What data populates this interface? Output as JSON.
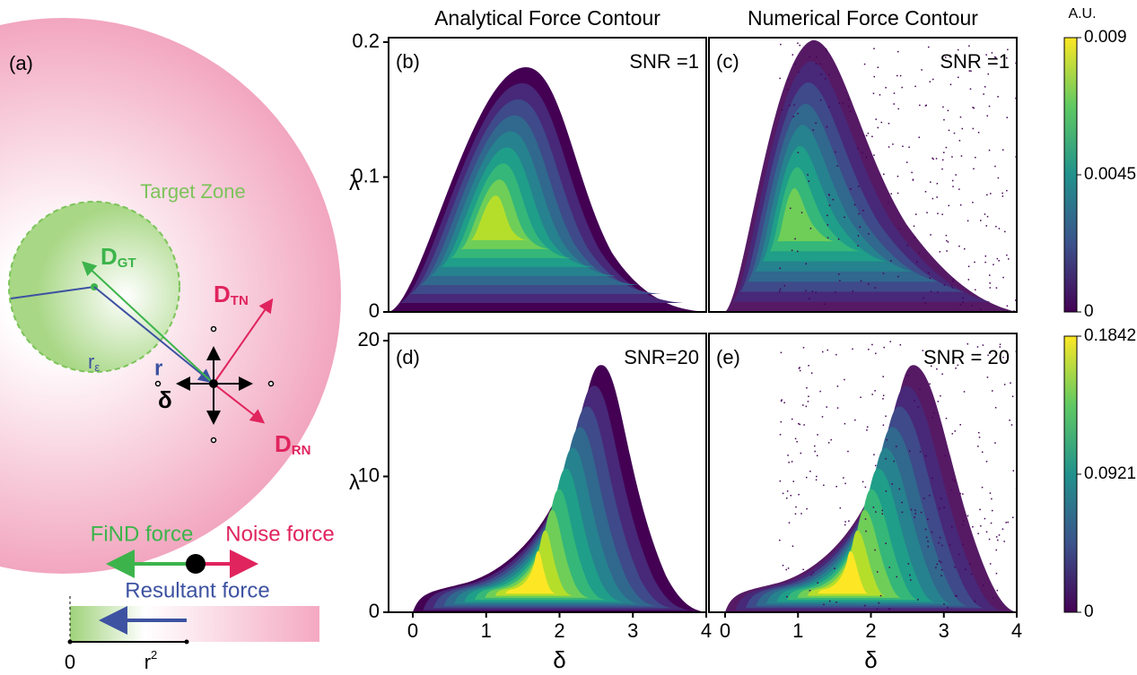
{
  "figure_label": "(a)",
  "diagram": {
    "target_zone": "Target Zone",
    "d_gt": {
      "main": "D",
      "sub": "GT"
    },
    "d_tn": {
      "main": "D",
      "sub": "TN"
    },
    "d_rn": {
      "main": "D",
      "sub": "RN"
    },
    "r_eps": {
      "main": "r",
      "sub": "ε"
    },
    "r": "r",
    "delta": "δ",
    "find_force": "FiND force",
    "noise_force": "Noise force",
    "resultant_force": "Resultant force",
    "axis_zero": "0",
    "axis_r2": {
      "main": "r",
      "sup": "2"
    }
  },
  "chart_data": [
    {
      "type": "contour",
      "panel_label": "(b)",
      "title": "Analytical Force Contour",
      "annotation": "SNR =1",
      "ylabel": "λ",
      "ylim": [
        0,
        0.2
      ],
      "yticks": [
        0,
        0.1,
        0.2
      ],
      "xlim": [
        0,
        4
      ]
    },
    {
      "type": "contour",
      "panel_label": "(c)",
      "title": "Numerical Force Contour",
      "annotation": "SNR =1",
      "xlim": [
        0,
        4
      ],
      "colorbar": {
        "label": "A.U.",
        "lim": [
          0,
          0.009
        ],
        "ticks": [
          0,
          0.0045,
          0.009
        ]
      }
    },
    {
      "type": "contour",
      "panel_label": "(d)",
      "annotation": "SNR=20",
      "ylabel": "λ",
      "xlabel": "δ",
      "ylim": [
        0,
        20
      ],
      "yticks": [
        0,
        10,
        20
      ],
      "xlim": [
        0,
        4
      ],
      "xticks": [
        0,
        1,
        2,
        3,
        4
      ]
    },
    {
      "type": "contour",
      "panel_label": "(e)",
      "annotation": "SNR = 20",
      "xlabel": "δ",
      "xlim": [
        0,
        4
      ],
      "xticks": [
        0,
        1,
        2,
        3,
        4
      ],
      "colorbar": {
        "lim": [
          0,
          0.1842
        ],
        "ticks": [
          0,
          0.0921,
          0.1842
        ]
      }
    }
  ]
}
